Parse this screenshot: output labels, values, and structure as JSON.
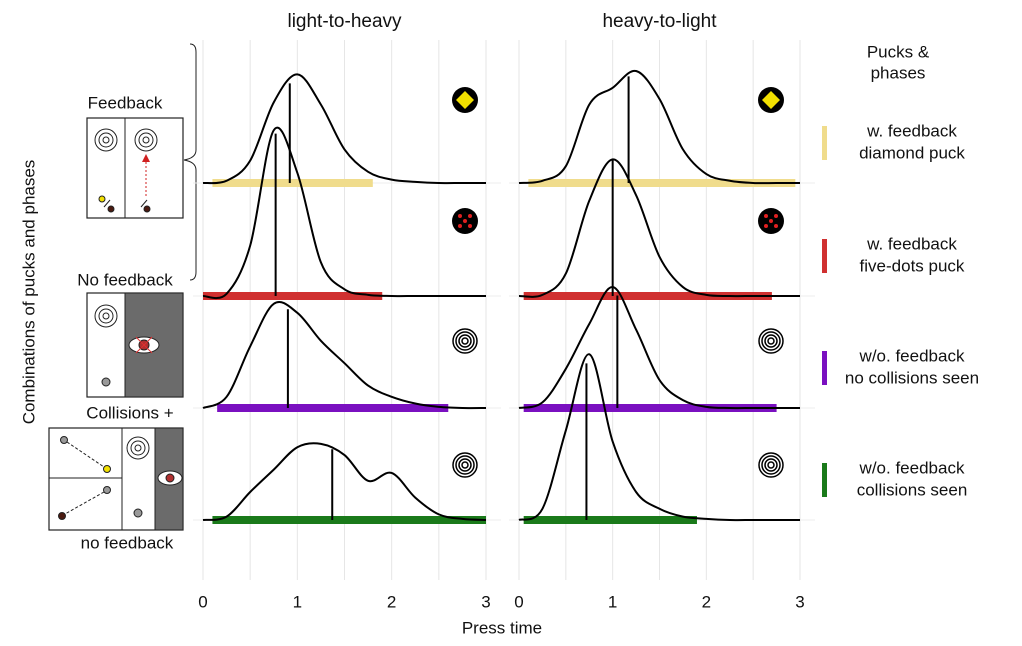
{
  "chart_data": {
    "type": "ridgeline",
    "x_label": "Press time",
    "y_label": "Combinations of pucks and phases",
    "legend_title": [
      "Pucks &",
      "phases"
    ],
    "annotations": [
      "Feedback",
      "No feedback",
      "Collisions +",
      "no feedback"
    ],
    "xlim": [
      0,
      3
    ],
    "xticks": [
      0,
      1,
      2,
      3
    ],
    "x_minor_grid": [
      0.5,
      1.5,
      2.5
    ],
    "ylim": [
      0,
      1
    ],
    "grid": true,
    "x": [
      0,
      0.25,
      0.5,
      0.75,
      1,
      1.25,
      1.5,
      1.75,
      2,
      2.25,
      2.5,
      2.75,
      3
    ],
    "series": [
      {
        "name": [
          "w. feedback",
          "diamond puck"
        ],
        "color": "#f0dc8c"
      },
      {
        "name": [
          "w. feedback",
          "five-dots puck"
        ],
        "color": "#d03030"
      },
      {
        "name": [
          "w/o. feedback",
          "no collisions seen"
        ],
        "color": "#7a10c0"
      },
      {
        "name": [
          "w/o. feedback",
          "collisions seen"
        ],
        "color": "#1a7a1a"
      }
    ],
    "panels": [
      {
        "title": "light-to-heavy",
        "values": [
          [
            0,
            0.02,
            0.2,
            0.72,
            0.97,
            0.7,
            0.3,
            0.1,
            0.03,
            0.01,
            0,
            0,
            0
          ],
          [
            0,
            0.02,
            0.45,
            1.48,
            1.1,
            0.3,
            0.06,
            0.01,
            0,
            0,
            0,
            0,
            0
          ],
          [
            0,
            0.1,
            0.55,
            0.93,
            0.85,
            0.6,
            0.4,
            0.2,
            0.1,
            0.04,
            0.01,
            0,
            0
          ],
          [
            0,
            0.03,
            0.25,
            0.45,
            0.65,
            0.68,
            0.58,
            0.35,
            0.42,
            0.2,
            0.05,
            0.01,
            0
          ]
        ],
        "medians": [
          0.92,
          0.77,
          0.9,
          1.37
        ],
        "rug_ranges": [
          [
            0.1,
            1.8
          ],
          [
            0,
            1.9
          ],
          [
            0.15,
            2.6
          ],
          [
            0.1,
            3
          ]
        ]
      },
      {
        "title": "heavy-to-light",
        "values": [
          [
            0,
            0.02,
            0.15,
            0.7,
            0.85,
            1.0,
            0.75,
            0.3,
            0.08,
            0.02,
            0,
            0,
            0
          ],
          [
            0,
            0.01,
            0.2,
            0.85,
            1.22,
            0.9,
            0.35,
            0.08,
            0.01,
            0,
            0,
            0,
            0
          ],
          [
            0,
            0.05,
            0.35,
            0.75,
            1.08,
            0.7,
            0.25,
            0.07,
            0.01,
            0,
            0,
            0,
            0
          ],
          [
            0,
            0.1,
            0.8,
            1.48,
            0.7,
            0.25,
            0.1,
            0.03,
            0.01,
            0,
            0,
            0,
            0
          ]
        ],
        "medians": [
          1.17,
          1.0,
          1.05,
          0.72
        ],
        "rug_ranges": [
          [
            0.1,
            2.95
          ],
          [
            0.05,
            2.7
          ],
          [
            0.05,
            2.75
          ],
          [
            0.05,
            1.9
          ]
        ]
      }
    ]
  }
}
